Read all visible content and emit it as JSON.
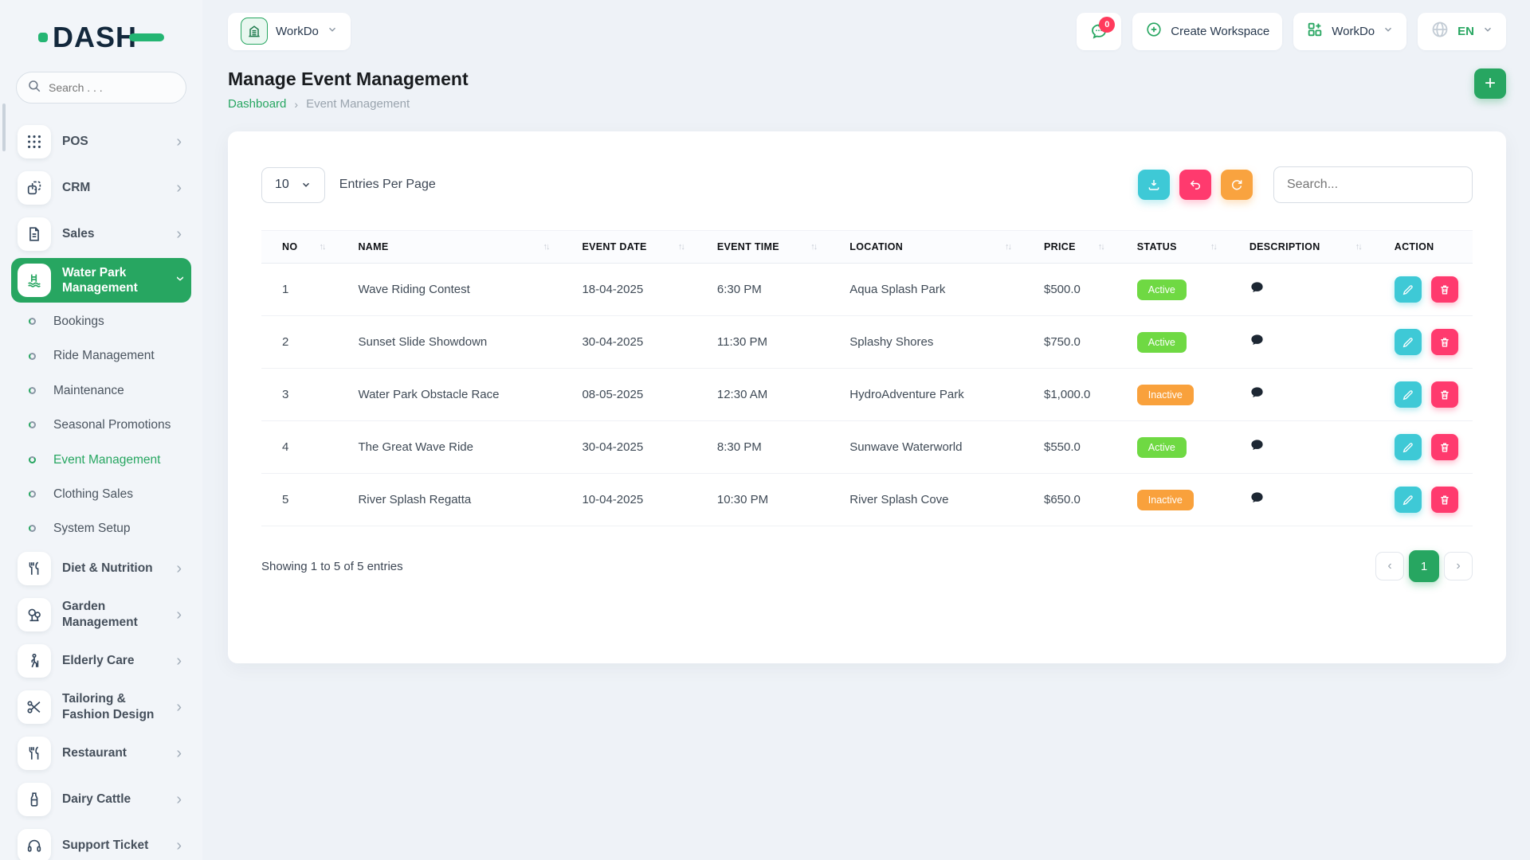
{
  "brand": {
    "name": "DASH"
  },
  "sidebar": {
    "search_placeholder": "Search . . .",
    "items": [
      {
        "label": "POS",
        "icon": "pos-grid-icon",
        "type": "parent"
      },
      {
        "label": "CRM",
        "icon": "crm-icon",
        "type": "parent"
      },
      {
        "label": "Sales",
        "icon": "sales-document-icon",
        "type": "parent"
      },
      {
        "label": "Water Park Management",
        "icon": "water-park-icon",
        "type": "parent",
        "active": true
      },
      {
        "label": "Bookings",
        "type": "child"
      },
      {
        "label": "Ride Management",
        "type": "child"
      },
      {
        "label": "Maintenance",
        "type": "child"
      },
      {
        "label": "Seasonal Promotions",
        "type": "child"
      },
      {
        "label": "Event Management",
        "type": "child",
        "active": true
      },
      {
        "label": "Clothing Sales",
        "type": "child"
      },
      {
        "label": "System Setup",
        "type": "child"
      },
      {
        "label": "Diet & Nutrition",
        "icon": "utensils-icon",
        "type": "parent"
      },
      {
        "label": "Garden Management",
        "icon": "trees-icon",
        "type": "parent"
      },
      {
        "label": "Elderly Care",
        "icon": "walking-person-icon",
        "type": "parent"
      },
      {
        "label": "Tailoring & Fashion Design",
        "icon": "scissors-icon",
        "type": "parent"
      },
      {
        "label": "Restaurant",
        "icon": "utensils-icon",
        "type": "parent"
      },
      {
        "label": "Dairy Cattle",
        "icon": "milk-bottle-icon",
        "type": "parent"
      },
      {
        "label": "Support Ticket",
        "icon": "headset-icon",
        "type": "parent"
      }
    ]
  },
  "topbar": {
    "workspace_name": "WorkDo",
    "messages_badge": "0",
    "create_workspace_label": "Create Workspace",
    "workdo_menu_label": "WorkDo",
    "language": "EN"
  },
  "page": {
    "title": "Manage Event Management",
    "breadcrumb": {
      "home": "Dashboard",
      "separator": "›",
      "current": "Event Management"
    },
    "add_button_label": "+"
  },
  "toolbar": {
    "entries_per_page_value": "10",
    "entries_per_page_label": "Entries Per Page",
    "search_placeholder": "Search...",
    "action_icons": [
      "download-icon",
      "undo-icon",
      "refresh-icon"
    ]
  },
  "table": {
    "headers": [
      "NO",
      "NAME",
      "EVENT DATE",
      "EVENT TIME",
      "LOCATION",
      "PRICE",
      "STATUS",
      "DESCRIPTION",
      "ACTION"
    ],
    "sort_glyph": "↑↓",
    "rows": [
      {
        "no": "1",
        "name": "Wave Riding Contest",
        "date": "18-04-2025",
        "time": "6:30 PM",
        "location": "Aqua Splash Park",
        "price": "$500.0",
        "status": "Active"
      },
      {
        "no": "2",
        "name": "Sunset Slide Showdown",
        "date": "30-04-2025",
        "time": "11:30 PM",
        "location": "Splashy Shores",
        "price": "$750.0",
        "status": "Active"
      },
      {
        "no": "3",
        "name": "Water Park Obstacle Race",
        "date": "08-05-2025",
        "time": "12:30 AM",
        "location": "HydroAdventure Park",
        "price": "$1,000.0",
        "status": "Inactive"
      },
      {
        "no": "4",
        "name": "The Great Wave Ride",
        "date": "30-04-2025",
        "time": "8:30 PM",
        "location": "Sunwave Waterworld",
        "price": "$550.0",
        "status": "Active"
      },
      {
        "no": "5",
        "name": "River Splash Regatta",
        "date": "10-04-2025",
        "time": "10:30 PM",
        "location": "River Splash Cove",
        "price": "$650.0",
        "status": "Inactive"
      }
    ]
  },
  "footer": {
    "showing_text": "Showing 1 to 5 of 5 entries",
    "pagination": {
      "prev": "‹",
      "current_page": "1",
      "next": "›"
    }
  },
  "colors": {
    "primary_green": "#27a661",
    "status_active": "#6fd943",
    "status_inactive": "#f9a13c",
    "edit_cyan": "#3ec9d6",
    "delete_pink": "#ff3a6e",
    "refresh_orange": "#f9a33f",
    "badge_red": "#ff3b5c"
  }
}
